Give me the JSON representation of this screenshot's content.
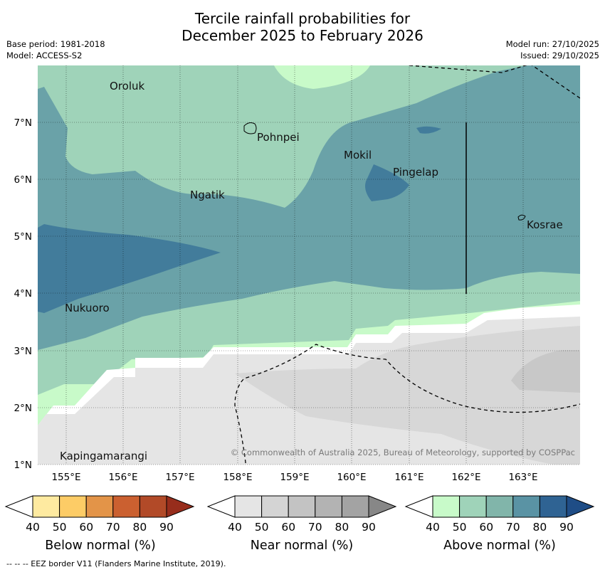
{
  "title": {
    "line1": "Tercile rainfall probabilities for",
    "line2": "December 2025 to February 2026"
  },
  "meta": {
    "base_period": "Base period: 1981-2018",
    "model": "Model: ACCESS-S2",
    "model_run": "Model run: 27/10/2025",
    "issued": "Issued: 29/10/2025"
  },
  "map": {
    "x_ticks": [
      "155°E",
      "156°E",
      "157°E",
      "158°E",
      "159°E",
      "160°E",
      "161°E",
      "162°E",
      "163°E"
    ],
    "y_ticks": [
      "7°N",
      "6°N",
      "5°N",
      "4°N",
      "3°N",
      "2°N",
      "1°N"
    ],
    "places": [
      {
        "name": "Oroluk",
        "lon": 155.75,
        "lat": 7.6
      },
      {
        "name": "Pohnpei",
        "lon": 158.25,
        "lat": 6.85
      },
      {
        "name": "Mokil",
        "lon": 159.85,
        "lat": 6.45
      },
      {
        "name": "Pingelap",
        "lon": 160.7,
        "lat": 6.2
      },
      {
        "name": "Ngatik",
        "lon": 157.15,
        "lat": 5.75
      },
      {
        "name": "Kosrae",
        "lon": 162.95,
        "lat": 5.3
      },
      {
        "name": "Nukuoro",
        "lon": 154.95,
        "lat": 3.85
      },
      {
        "name": "Kapingamarangi",
        "lon": 154.8,
        "lat": 1.2
      }
    ],
    "copyright": "© Commonwealth of Australia 2025, Bureau of Meteorology, supported by COSPPac"
  },
  "colorbars": [
    {
      "name": "below",
      "title": "Below normal (%)",
      "labels": [
        "40",
        "50",
        "60",
        "70",
        "80",
        "90"
      ],
      "colors": [
        "#ffffff",
        "#feeaa0",
        "#fdcc66",
        "#e39448",
        "#cb6030",
        "#b24a28",
        "#972d1c"
      ]
    },
    {
      "name": "near",
      "title": "Near normal (%)",
      "labels": [
        "40",
        "50",
        "60",
        "70",
        "80",
        "90"
      ],
      "colors": [
        "#ffffff",
        "#e5e5e5",
        "#d4d4d4",
        "#c3c3c3",
        "#b3b3b3",
        "#a3a3a3",
        "#878787"
      ]
    },
    {
      "name": "above",
      "title": "Above normal (%)",
      "labels": [
        "40",
        "50",
        "60",
        "70",
        "80",
        "90"
      ],
      "colors": [
        "#ffffff",
        "#c8fac9",
        "#9fd3b9",
        "#81b5aa",
        "#5a93a4",
        "#2f6393",
        "#1f4d86"
      ]
    }
  ],
  "footer": "--  --  -- EEZ border V11 (Flanders Marine Institute, 2019)."
}
